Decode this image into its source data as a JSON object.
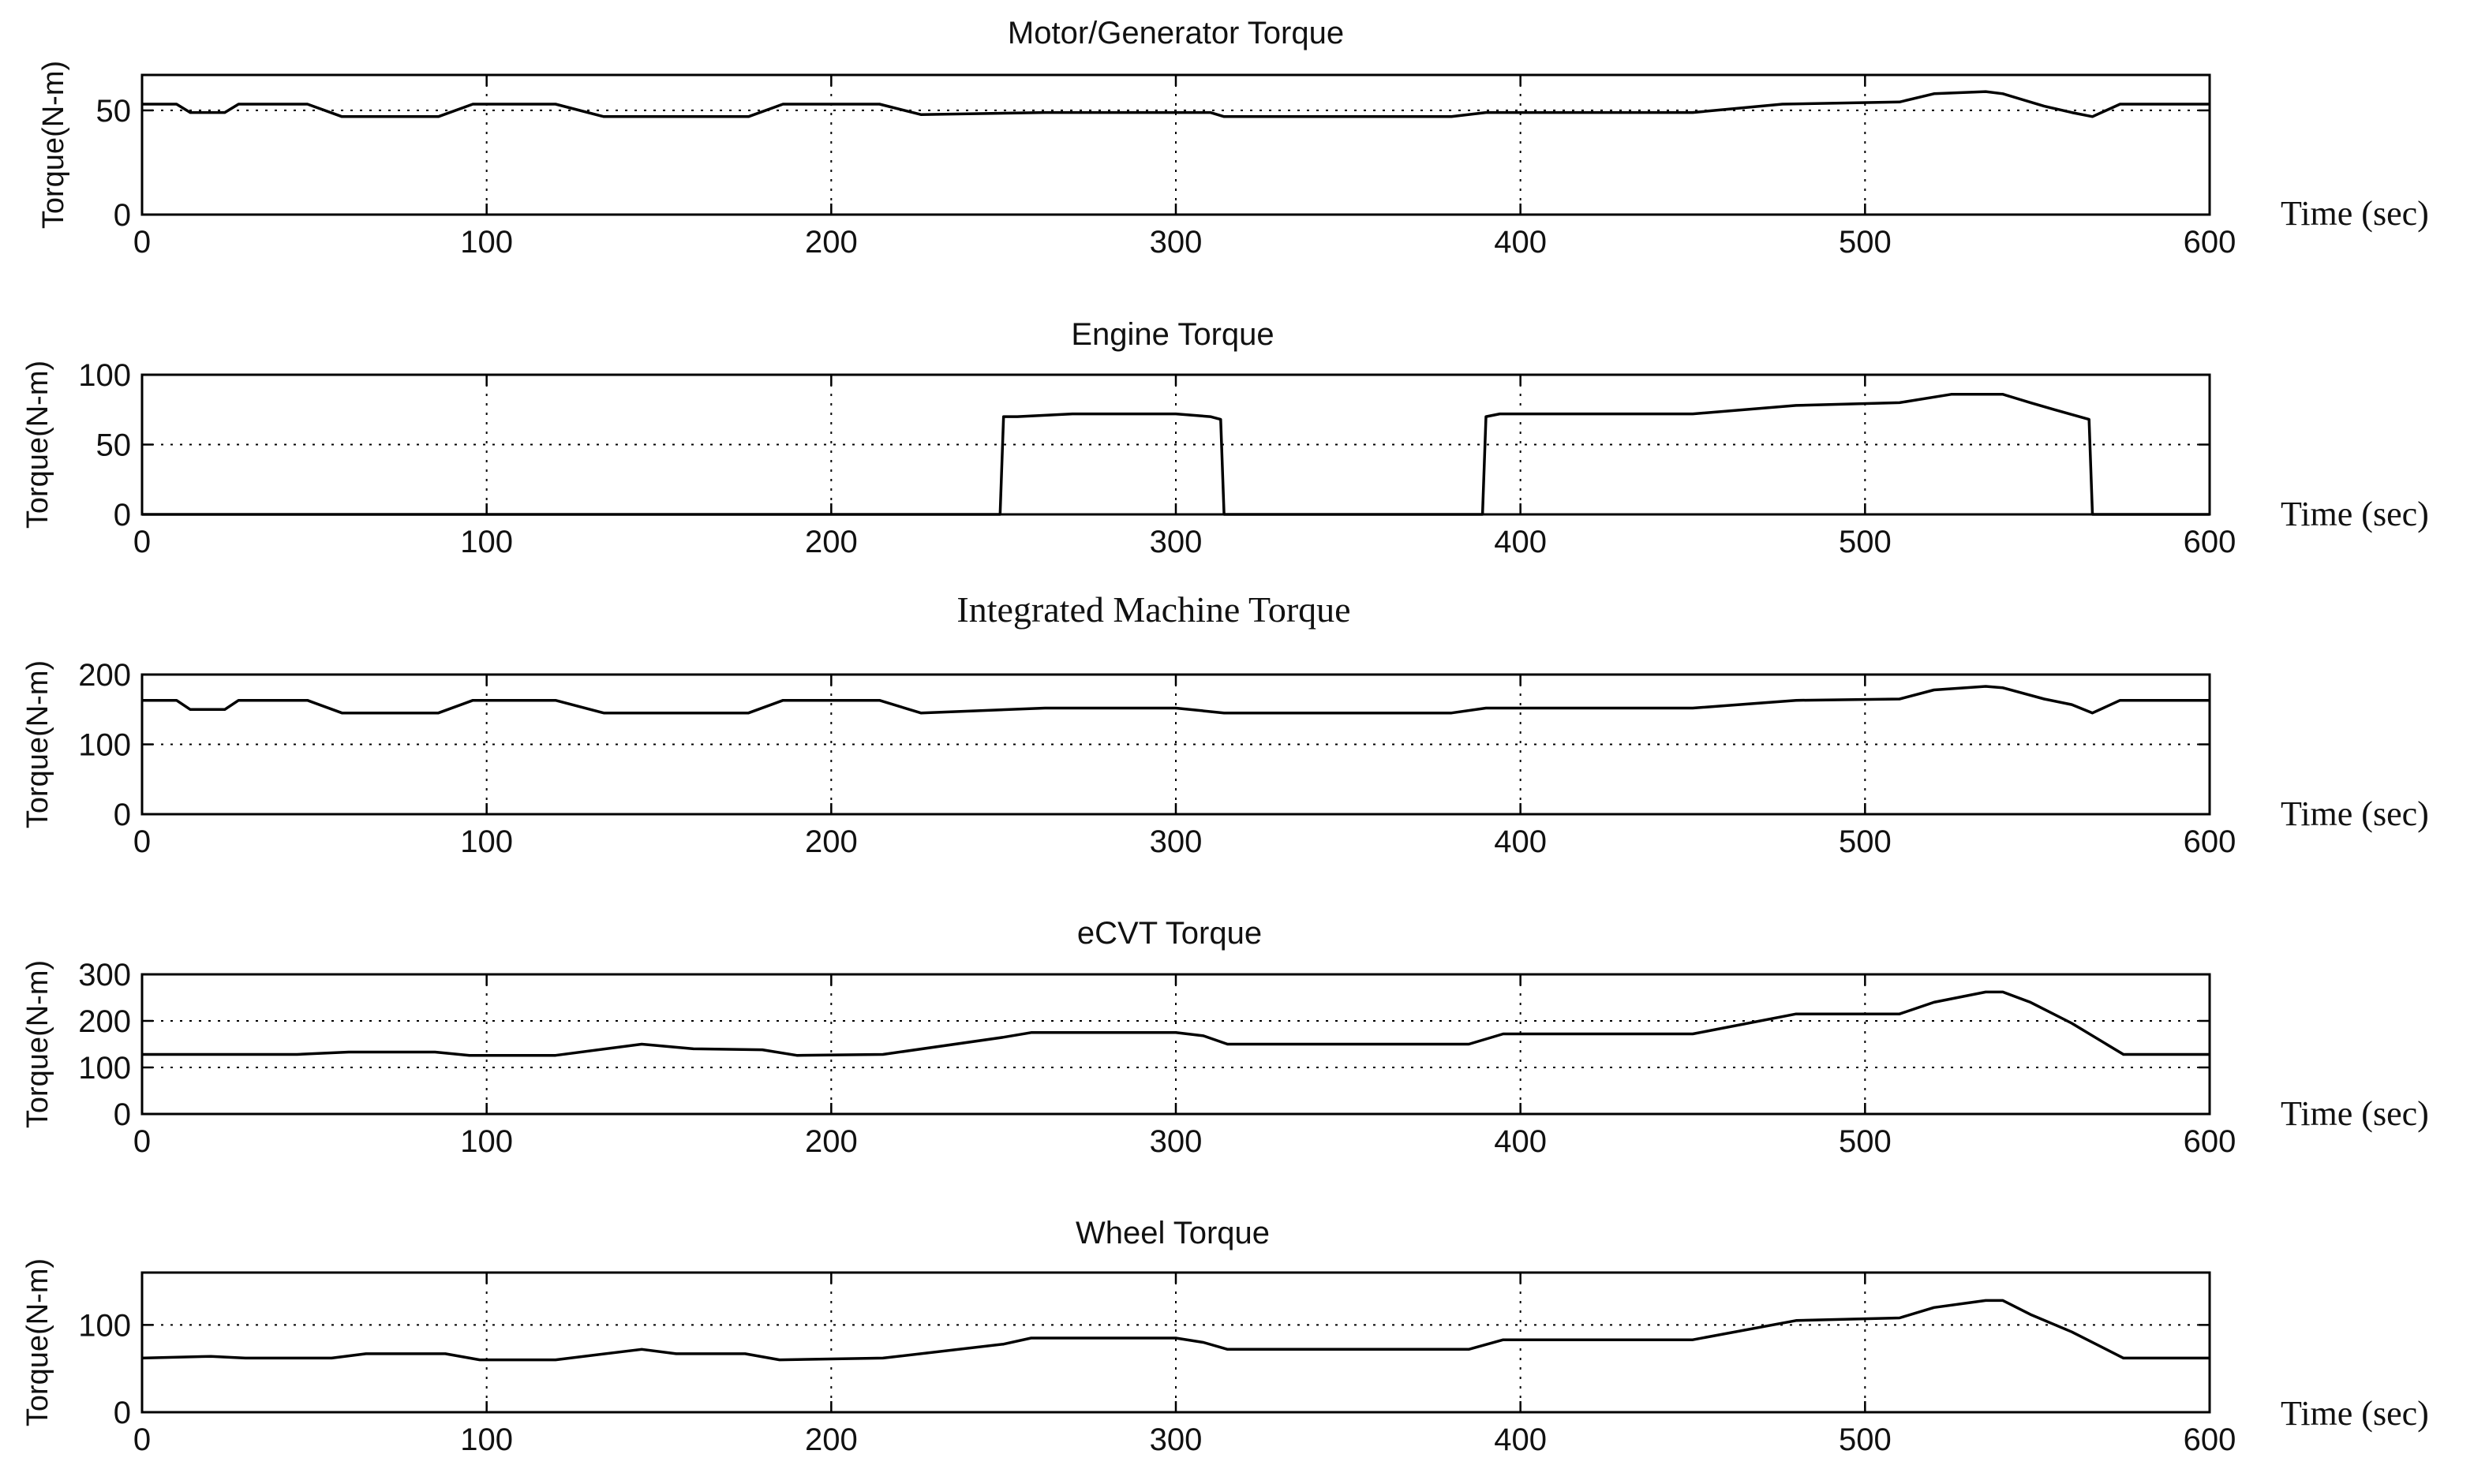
{
  "chart_data": [
    {
      "type": "line",
      "title": "Motor/Generator Torque",
      "title_font": "sans",
      "xlabel": "Time (sec)",
      "ylabel": "Torque(N-m)",
      "xlim": [
        0,
        600
      ],
      "ylim": [
        0,
        67
      ],
      "xticks": [
        0,
        100,
        200,
        300,
        400,
        500,
        600
      ],
      "yticks": [
        0,
        50
      ],
      "grid": true,
      "series": [
        {
          "x": [
            0,
            10,
            14,
            24,
            28,
            48,
            58,
            86,
            96,
            120,
            134,
            176,
            186,
            214,
            226,
            262,
            310,
            314,
            320,
            380,
            390,
            450,
            476,
            510,
            520,
            535,
            540,
            552,
            560,
            566,
            574,
            600
          ],
          "values": [
            53,
            53,
            49,
            49,
            53,
            53,
            47,
            47,
            53,
            53,
            47,
            47,
            53,
            53,
            48,
            49,
            49,
            47,
            47,
            47,
            49,
            49,
            53,
            54,
            58,
            59,
            58,
            52,
            49,
            47,
            53,
            53
          ]
        }
      ]
    },
    {
      "type": "line",
      "title": "Engine Torque",
      "title_font": "sans",
      "xlabel": "Time (sec)",
      "ylabel": "Torque(N-m)",
      "xlim": [
        0,
        600
      ],
      "ylim": [
        0,
        100
      ],
      "xticks": [
        0,
        100,
        200,
        300,
        400,
        500,
        600
      ],
      "yticks": [
        0,
        50,
        100
      ],
      "grid": true,
      "series": [
        {
          "x": [
            0,
            249,
            250,
            254,
            270,
            300,
            310,
            313,
            314,
            389,
            390,
            394,
            450,
            480,
            510,
            525,
            540,
            548,
            555,
            565,
            566,
            600
          ],
          "values": [
            0,
            0,
            70,
            70,
            72,
            72,
            70,
            68,
            0,
            0,
            70,
            72,
            72,
            78,
            80,
            86,
            86,
            80,
            75,
            68,
            0,
            0
          ]
        }
      ]
    },
    {
      "type": "line",
      "title": "Integrated Machine Torque",
      "title_font": "serif",
      "xlabel": "Time (sec)",
      "ylabel": "Torque(N-m)",
      "xlim": [
        0,
        600
      ],
      "ylim": [
        0,
        200
      ],
      "xticks": [
        0,
        100,
        200,
        300,
        400,
        500,
        600
      ],
      "yticks": [
        0,
        100,
        200
      ],
      "grid": true,
      "series": [
        {
          "x": [
            0,
            10,
            14,
            24,
            28,
            48,
            58,
            86,
            96,
            120,
            134,
            176,
            186,
            214,
            226,
            262,
            300,
            314,
            380,
            390,
            450,
            480,
            510,
            520,
            535,
            540,
            552,
            560,
            566,
            574,
            600
          ],
          "values": [
            163,
            163,
            150,
            150,
            163,
            163,
            145,
            145,
            163,
            163,
            145,
            145,
            163,
            163,
            145,
            152,
            152,
            145,
            145,
            152,
            152,
            163,
            165,
            178,
            183,
            181,
            165,
            157,
            145,
            163,
            163
          ]
        }
      ]
    },
    {
      "type": "line",
      "title": "eCVT Torque",
      "title_font": "sans",
      "xlabel": "Time (sec)",
      "ylabel": "Torque(N-m)",
      "xlim": [
        0,
        600
      ],
      "ylim": [
        0,
        300
      ],
      "xticks": [
        0,
        100,
        200,
        300,
        400,
        500,
        600
      ],
      "yticks": [
        0,
        100,
        200,
        300
      ],
      "grid": true,
      "series": [
        {
          "x": [
            0,
            45,
            60,
            85,
            95,
            120,
            145,
            160,
            180,
            190,
            215,
            250,
            258,
            300,
            308,
            315,
            385,
            395,
            450,
            480,
            510,
            520,
            535,
            540,
            548,
            560,
            575,
            600
          ],
          "values": [
            128,
            128,
            133,
            133,
            126,
            126,
            150,
            140,
            138,
            126,
            128,
            165,
            175,
            175,
            168,
            150,
            150,
            172,
            172,
            215,
            215,
            240,
            262,
            262,
            240,
            195,
            128,
            128
          ]
        }
      ]
    },
    {
      "type": "line",
      "title": "Wheel Torque",
      "title_font": "sans",
      "xlabel": "Time (sec)",
      "ylabel": "Torque(N-m)",
      "xlim": [
        0,
        600
      ],
      "ylim": [
        0,
        160
      ],
      "xticks": [
        0,
        100,
        200,
        300,
        400,
        500,
        600
      ],
      "yticks": [
        0,
        100
      ],
      "grid": true,
      "series": [
        {
          "x": [
            0,
            20,
            30,
            55,
            65,
            88,
            98,
            120,
            145,
            155,
            175,
            185,
            215,
            250,
            258,
            300,
            308,
            315,
            385,
            395,
            450,
            480,
            510,
            520,
            535,
            540,
            548,
            560,
            575,
            600
          ],
          "values": [
            62,
            64,
            62,
            62,
            67,
            67,
            60,
            60,
            72,
            67,
            67,
            60,
            62,
            78,
            85,
            85,
            80,
            72,
            72,
            83,
            83,
            105,
            108,
            120,
            128,
            128,
            112,
            92,
            62,
            62
          ]
        }
      ]
    }
  ]
}
